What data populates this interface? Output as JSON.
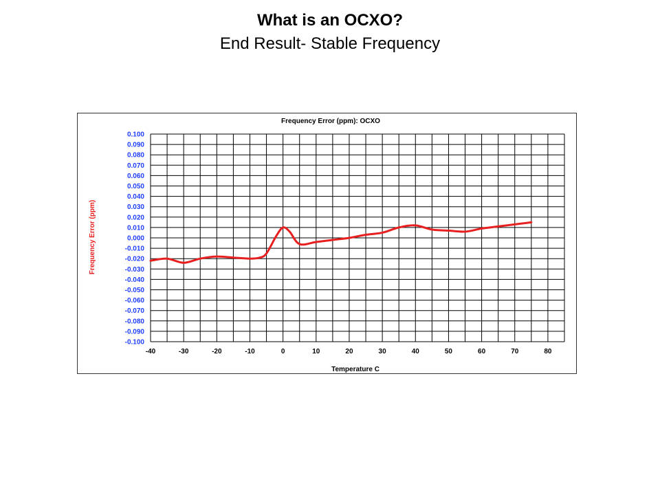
{
  "slide": {
    "title": "What is an OCXO?",
    "subtitle": "End Result- Stable Frequency"
  },
  "colors": {
    "series_line": "#e81f1f",
    "y_tick_labels": "#1f3fff",
    "y_axis_label": "#e81f1f",
    "grid": "#000000"
  },
  "chart_data": {
    "type": "line",
    "title": "Frequency Error (ppm): OCXO",
    "xlabel": "Temperature C",
    "ylabel": "Frequency Error (ppm)",
    "xlim": [
      -40,
      85
    ],
    "ylim": [
      -0.1,
      0.1
    ],
    "x_ticks": [
      -40,
      -30,
      -20,
      -10,
      0,
      10,
      20,
      30,
      40,
      50,
      60,
      70,
      80
    ],
    "y_ticks": [
      "0.100",
      "0.090",
      "0.080",
      "0.070",
      "0.060",
      "0.050",
      "0.040",
      "0.030",
      "0.020",
      "0.010",
      "0.000",
      "-0.010",
      "-0.020",
      "-0.030",
      "-0.040",
      "-0.050",
      "-0.060",
      "-0.070",
      "-0.080",
      "-0.090",
      "-0.100"
    ],
    "grid": true,
    "legend": "none",
    "series": [
      {
        "x": [
          -40,
          -35,
          -30,
          -25,
          -20,
          -15,
          -10,
          -7,
          -5,
          -2,
          0,
          2,
          5,
          10,
          15,
          20,
          25,
          30,
          35,
          40,
          45,
          50,
          55,
          60,
          65,
          70,
          75
        ],
        "y": [
          -0.022,
          -0.02,
          -0.024,
          -0.02,
          -0.018,
          -0.019,
          -0.02,
          -0.019,
          -0.015,
          0.002,
          0.01,
          0.006,
          -0.006,
          -0.004,
          -0.002,
          0.0,
          0.003,
          0.005,
          0.01,
          0.012,
          0.008,
          0.007,
          0.006,
          0.009,
          0.011,
          0.013,
          0.015
        ]
      }
    ]
  }
}
